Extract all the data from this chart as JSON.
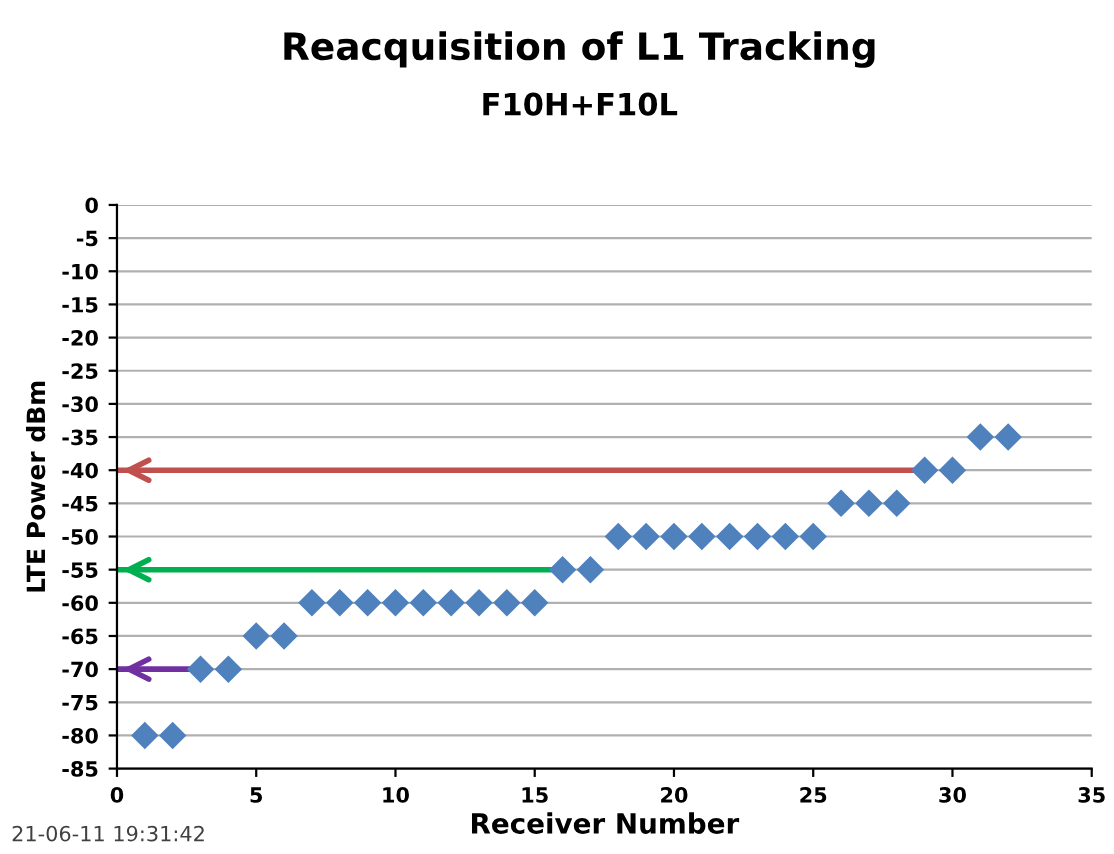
{
  "chart_data": {
    "type": "scatter",
    "title": "Reacquisition of L1 Tracking",
    "subtitle": "F10H+F10L",
    "xlabel": "Receiver Number",
    "ylabel": "LTE Power dBm",
    "x": [
      1,
      2,
      3,
      4,
      5,
      6,
      7,
      8,
      9,
      10,
      11,
      12,
      13,
      14,
      15,
      16,
      17,
      18,
      19,
      20,
      21,
      22,
      23,
      24,
      25,
      26,
      27,
      28,
      29,
      30,
      31,
      32
    ],
    "series": [
      {
        "color": "#4f81bd",
        "marker": "diamond",
        "values": [
          -80,
          -80,
          -70,
          -70,
          -65,
          -65,
          -60,
          -60,
          -60,
          -60,
          -60,
          -60,
          -60,
          -60,
          -60,
          -55,
          -55,
          -50,
          -50,
          -50,
          -50,
          -50,
          -50,
          -50,
          -50,
          -45,
          -45,
          -45,
          -40,
          -40,
          -35,
          -35
        ]
      },
      {
        "type": "line",
        "color": "#c0504d",
        "x": [
          0,
          29
        ],
        "values": [
          -40,
          -40
        ]
      },
      {
        "type": "line",
        "color": "#00b050",
        "x": [
          0,
          16
        ],
        "values": [
          -55,
          -55
        ]
      },
      {
        "type": "line",
        "color": "#7030a0",
        "x": [
          0,
          3
        ],
        "values": [
          -70,
          -70
        ]
      }
    ],
    "xlim": [
      0,
      35
    ],
    "xticks": [
      0,
      5,
      10,
      15,
      20,
      25,
      30,
      35
    ],
    "ylim": [
      -85,
      0
    ],
    "yticks": [
      0,
      -5,
      -10,
      -15,
      -20,
      -25,
      -30,
      -35,
      -40,
      -45,
      -50,
      -55,
      -60,
      -65,
      -70,
      -75,
      -80,
      -85
    ],
    "grid": "y",
    "legend": false,
    "annotations": [
      "21-06-11 19:31:42"
    ]
  }
}
